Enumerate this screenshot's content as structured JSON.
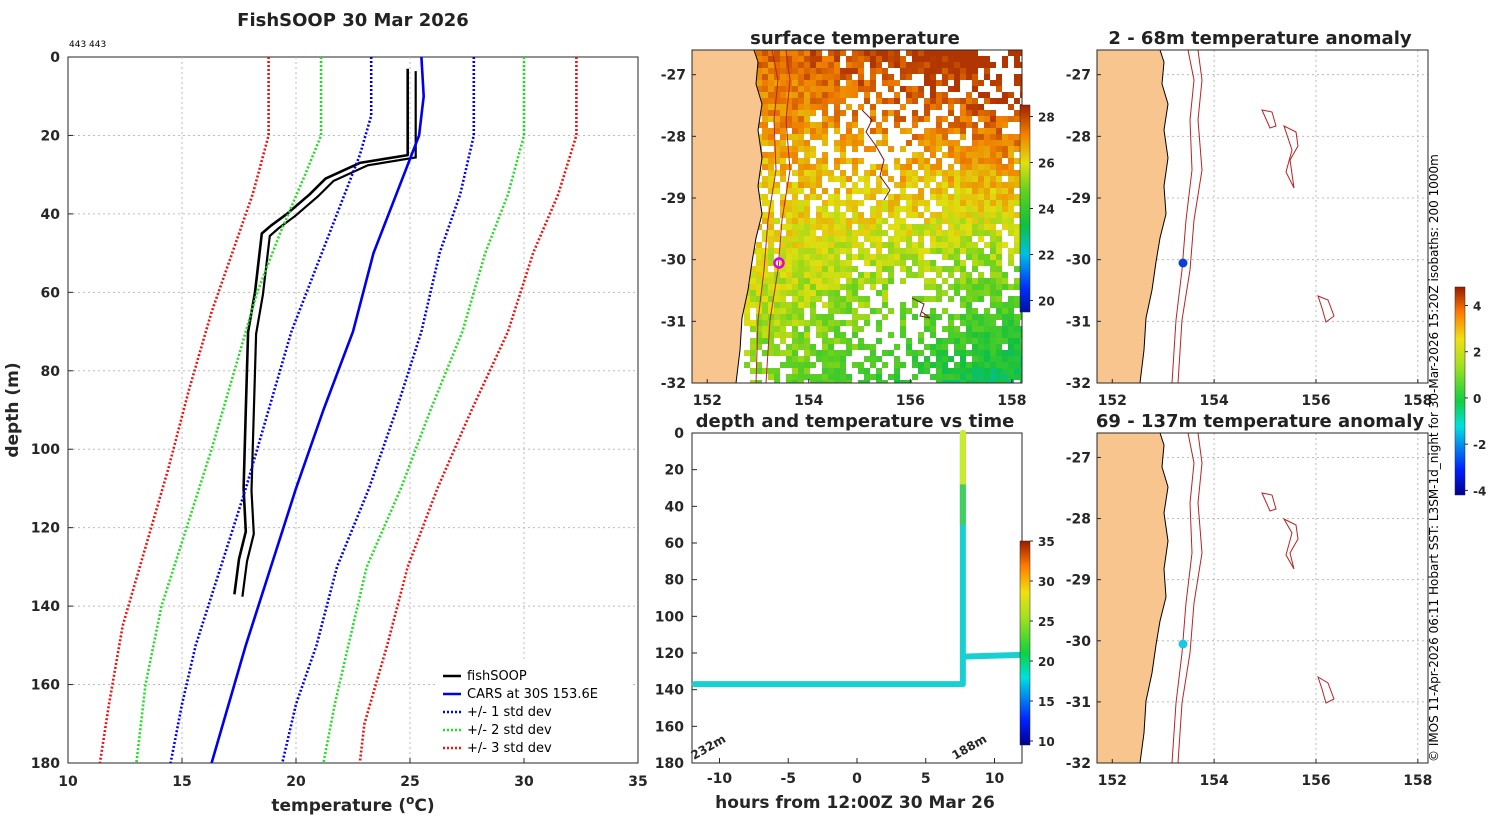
{
  "profile": {
    "title": "FishSOOP 30 Mar 2026",
    "id_text": "443 443",
    "xlabel": "temperature (",
    "xlabel_sup": "o",
    "xlabel_end": "C)",
    "ylabel": "depth (m)",
    "x_ticks": [
      "10",
      "15",
      "20",
      "25",
      "30",
      "35"
    ],
    "y_ticks": [
      "0",
      "20",
      "40",
      "60",
      "80",
      "100",
      "120",
      "140",
      "160",
      "180"
    ],
    "legend": [
      "fishSOOP",
      "CARS at 30S 153.6E",
      "+/- 1 std dev",
      "+/- 2 std dev",
      "+/- 3 std dev"
    ],
    "colors": {
      "fish": "#000000",
      "cars": "#0000ee",
      "std": "#0000ee",
      "std2": "#22dd22",
      "std3": "#ee1111"
    }
  },
  "sst": {
    "title": "surface temperature",
    "x_ticks": [
      "152",
      "154",
      "156",
      "158"
    ],
    "y_ticks": [
      "-27",
      "-28",
      "-29",
      "-30",
      "-31",
      "-32"
    ],
    "colorbar_ticks": [
      "28",
      "26",
      "24",
      "22",
      "20"
    ]
  },
  "timeplot": {
    "title": "depth and temperature vs time",
    "xlabel": "hours from 12:00Z 30 Mar 26",
    "x_ticks": [
      "-10",
      "-5",
      "0",
      "5",
      "10"
    ],
    "y_ticks": [
      "0",
      "20",
      "40",
      "60",
      "80",
      "100",
      "120",
      "140",
      "160",
      "180"
    ],
    "annot_left": "232m",
    "annot_right": "188m",
    "colorbar_ticks": [
      "35",
      "30",
      "25",
      "20",
      "15",
      "10"
    ]
  },
  "anom1": {
    "title": "2 - 68m temperature anomaly",
    "x_ticks": [
      "152",
      "154",
      "156",
      "158"
    ],
    "y_ticks": [
      "-27",
      "-28",
      "-29",
      "-30",
      "-31",
      "-32"
    ]
  },
  "anom2": {
    "title": "69 - 137m temperature anomaly",
    "x_ticks": [
      "152",
      "154",
      "156",
      "158"
    ],
    "y_ticks": [
      "-27",
      "-28",
      "-29",
      "-30",
      "-31",
      "-32"
    ]
  },
  "anom_colorbar_ticks": [
    "4",
    "2",
    "0",
    "-2",
    "-4"
  ],
  "credit": "© IMOS 11-Apr-2026 06:11 Hobart SST: L3SM-1d_night for 30-Mar-2026 15:20Z isobaths: 200  1000m",
  "chart_data": [
    {
      "type": "line",
      "title": "FishSOOP 30 Mar 2026",
      "xlabel": "temperature (oC)",
      "ylabel": "depth (m)",
      "xlim": [
        10,
        35
      ],
      "ylim": [
        180,
        0
      ],
      "grid": true,
      "legend_position": "bottom-right",
      "series": [
        {
          "name": "fishSOOP",
          "points": [
            [
              24.9,
              3
            ],
            [
              24.9,
              25
            ],
            [
              22.8,
              27
            ],
            [
              21.3,
              31
            ],
            [
              20.6,
              35
            ],
            [
              19.6,
              40
            ],
            [
              18.9,
              43
            ],
            [
              18.5,
              45
            ],
            [
              18.2,
              60
            ],
            [
              17.9,
              70
            ],
            [
              17.8,
              90
            ],
            [
              17.7,
              110
            ],
            [
              17.8,
              121
            ],
            [
              17.5,
              128
            ],
            [
              17.3,
              137
            ]
          ]
        },
        {
          "name": "CARS at 30S 153.6E",
          "points": [
            [
              25.5,
              0
            ],
            [
              25.6,
              10
            ],
            [
              25.4,
              20
            ],
            [
              24.4,
              35
            ],
            [
              23.4,
              50
            ],
            [
              22.5,
              70
            ],
            [
              21.2,
              90
            ],
            [
              20.0,
              110
            ],
            [
              18.9,
              130
            ],
            [
              17.8,
              150
            ],
            [
              16.8,
              170
            ],
            [
              16.3,
              180
            ]
          ]
        },
        {
          "name": "+/- 1 std dev",
          "points": [
            [
              23.3,
              0
            ],
            [
              23.3,
              15
            ],
            [
              22.8,
              25
            ],
            [
              21.8,
              40
            ],
            [
              20.8,
              55
            ],
            [
              19.8,
              70
            ],
            [
              18.8,
              90
            ],
            [
              17.8,
              110
            ],
            [
              16.7,
              130
            ],
            [
              15.6,
              150
            ],
            [
              15.0,
              165
            ],
            [
              14.5,
              180
            ]
          ]
        },
        {
          "name": "+/- 1 std dev (upper)",
          "points": [
            [
              27.8,
              0
            ],
            [
              27.8,
              20
            ],
            [
              27.2,
              35
            ],
            [
              26.3,
              50
            ],
            [
              25.5,
              70
            ],
            [
              24.4,
              90
            ],
            [
              23.2,
              110
            ],
            [
              21.8,
              130
            ],
            [
              20.9,
              150
            ],
            [
              20.0,
              165
            ],
            [
              19.4,
              180
            ]
          ]
        },
        {
          "name": "+/- 2 std dev",
          "points": [
            [
              21.1,
              0
            ],
            [
              21.1,
              20
            ],
            [
              20.4,
              30
            ],
            [
              19.3,
              45
            ],
            [
              18.3,
              60
            ],
            [
              17.3,
              80
            ],
            [
              16.3,
              100
            ],
            [
              15.2,
              120
            ],
            [
              14.1,
              140
            ],
            [
              13.4,
              160
            ],
            [
              13.0,
              180
            ]
          ]
        },
        {
          "name": "+/- 2 std dev (upper)",
          "points": [
            [
              30.0,
              0
            ],
            [
              30.0,
              20
            ],
            [
              29.3,
              35
            ],
            [
              28.3,
              50
            ],
            [
              27.3,
              70
            ],
            [
              25.9,
              90
            ],
            [
              24.6,
              110
            ],
            [
              23.1,
              130
            ],
            [
              22.3,
              150
            ],
            [
              21.7,
              165
            ],
            [
              21.2,
              180
            ]
          ]
        },
        {
          "name": "+/- 3 std dev",
          "points": [
            [
              18.8,
              0
            ],
            [
              18.8,
              20
            ],
            [
              18.1,
              35
            ],
            [
              17.2,
              50
            ],
            [
              16.3,
              65
            ],
            [
              15.3,
              85
            ],
            [
              14.4,
              105
            ],
            [
              13.4,
              125
            ],
            [
              12.4,
              145
            ],
            [
              11.8,
              165
            ],
            [
              11.4,
              180
            ]
          ]
        },
        {
          "name": "+/- 3 std dev (upper)",
          "points": [
            [
              32.3,
              0
            ],
            [
              32.3,
              20
            ],
            [
              31.5,
              35
            ],
            [
              30.4,
              50
            ],
            [
              29.3,
              70
            ],
            [
              27.7,
              90
            ],
            [
              26.2,
              110
            ],
            [
              24.9,
              130
            ],
            [
              24.0,
              150
            ],
            [
              23.0,
              170
            ],
            [
              22.8,
              180
            ]
          ]
        }
      ]
    },
    {
      "type": "heatmap",
      "title": "surface temperature",
      "xlim": [
        151.7,
        158.2
      ],
      "ylim": [
        -32,
        -26.6
      ],
      "colorbar_range": [
        19.5,
        28.5
      ],
      "marker": {
        "lon": 153.55,
        "lat": -30.02
      }
    },
    {
      "type": "scatter",
      "title": "depth and temperature vs time",
      "xlabel": "hours from 12:00Z 30 Mar 26",
      "xlim": [
        -12,
        12
      ],
      "ylim": [
        180,
        0
      ],
      "colorbar_range": [
        9.5,
        35
      ],
      "segments": [
        {
          "from": [
            -11.8,
            137
          ],
          "to": [
            7.6,
            137
          ],
          "temp": 19
        },
        {
          "from": [
            7.7,
            137
          ],
          "to": [
            7.7,
            0
          ],
          "temp": 19
        },
        {
          "from": [
            7.7,
            30
          ],
          "to": [
            7.7,
            0
          ],
          "temp": 27
        },
        {
          "from": [
            7.7,
            122
          ],
          "to": [
            12,
            121
          ],
          "temp": 20
        }
      ]
    },
    {
      "type": "heatmap",
      "title": "2 - 68m temperature anomaly",
      "xlim": [
        151.7,
        158.2
      ],
      "ylim": [
        -32,
        -26.6
      ],
      "colorbar_range": [
        -4.2,
        4.8
      ],
      "marker": {
        "lon": 153.55,
        "lat": -30.02,
        "value": -3
      }
    },
    {
      "type": "heatmap",
      "title": "69 - 137m temperature anomaly",
      "xlim": [
        151.7,
        158.2
      ],
      "ylim": [
        -32,
        -26.6
      ],
      "colorbar_range": [
        -4.2,
        4.8
      ],
      "marker": {
        "lon": 153.55,
        "lat": -30.02,
        "value": -1.5
      }
    }
  ]
}
